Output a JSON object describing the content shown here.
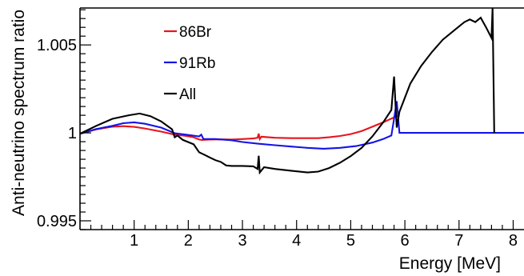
{
  "chart_data": {
    "type": "line",
    "title": "",
    "xlabel": "Energy [MeV]",
    "ylabel": "Anti-neutrino spectrum ratio",
    "xlim": [
      0,
      8.2
    ],
    "ylim": [
      0.9945,
      1.0071
    ],
    "x_ticks": [
      1,
      2,
      3,
      4,
      5,
      6,
      7,
      8
    ],
    "x_tick_labels": [
      "1",
      "2",
      "3",
      "4",
      "5",
      "6",
      "7",
      "8"
    ],
    "y_ticks": [
      0.995,
      1,
      1.005
    ],
    "y_tick_labels": [
      "0.995",
      "1",
      "1.005"
    ],
    "grid": false,
    "legend_position": "top-left",
    "series": [
      {
        "name": "86Br",
        "color": "#e8141c",
        "points": [
          [
            0,
            0.99995
          ],
          [
            0.3,
            1.0002
          ],
          [
            0.6,
            1.00035
          ],
          [
            0.8,
            1.00038
          ],
          [
            1.0,
            1.00034
          ],
          [
            1.2,
            1.00025
          ],
          [
            1.5,
            1.00007
          ],
          [
            1.75,
            0.9999
          ],
          [
            1.9,
            0.99985
          ],
          [
            2.1,
            0.99975
          ],
          [
            2.2,
            0.99962
          ],
          [
            2.25,
            0.9996
          ],
          [
            2.4,
            0.99962
          ],
          [
            2.6,
            0.99963
          ],
          [
            2.8,
            0.99962
          ],
          [
            3.0,
            0.99965
          ],
          [
            3.2,
            0.99968
          ],
          [
            3.28,
            0.99972
          ],
          [
            3.3,
            0.99996
          ],
          [
            3.32,
            0.99965
          ],
          [
            3.35,
            0.99978
          ],
          [
            3.6,
            0.99972
          ],
          [
            3.9,
            0.9997
          ],
          [
            4.2,
            0.9997
          ],
          [
            4.4,
            0.9997
          ],
          [
            4.6,
            0.99975
          ],
          [
            4.8,
            0.99982
          ],
          [
            5.0,
            0.99993
          ],
          [
            5.2,
            1.0001
          ],
          [
            5.4,
            1.00035
          ],
          [
            5.6,
            1.0006
          ],
          [
            5.8,
            1.00088
          ],
          [
            5.9,
            1.00102
          ]
        ]
      },
      {
        "name": "91Rb",
        "color": "#1414e6",
        "points": [
          [
            0,
            0.99995
          ],
          [
            0.3,
            1.00022
          ],
          [
            0.6,
            1.0004
          ],
          [
            0.8,
            1.00055
          ],
          [
            1.0,
            1.0006
          ],
          [
            1.2,
            1.00052
          ],
          [
            1.5,
            1.0003
          ],
          [
            1.75,
            0.99998
          ],
          [
            2.0,
            0.99988
          ],
          [
            2.2,
            0.9998
          ],
          [
            2.24,
            0.9999
          ],
          [
            2.28,
            0.99965
          ],
          [
            2.5,
            0.99965
          ],
          [
            2.8,
            0.99958
          ],
          [
            3.0,
            0.99948
          ],
          [
            3.3,
            0.99938
          ],
          [
            3.6,
            0.9993
          ],
          [
            3.9,
            0.99922
          ],
          [
            4.2,
            0.99915
          ],
          [
            4.5,
            0.9991
          ],
          [
            4.8,
            0.99915
          ],
          [
            5.1,
            0.99925
          ],
          [
            5.4,
            0.99945
          ],
          [
            5.6,
            0.99965
          ],
          [
            5.75,
            0.99985
          ],
          [
            5.8,
            1.0008
          ],
          [
            5.85,
            1.0018
          ],
          [
            5.9,
            1.0
          ],
          [
            6.3,
            1.0
          ],
          [
            7.0,
            1.0
          ],
          [
            7.65,
            1.0
          ],
          [
            8.2,
            1.0
          ]
        ]
      },
      {
        "name": "All",
        "color": "#000000",
        "points": [
          [
            0,
            0.99995
          ],
          [
            0.3,
            1.0004
          ],
          [
            0.6,
            1.0008
          ],
          [
            0.9,
            1.001
          ],
          [
            1.1,
            1.0011
          ],
          [
            1.3,
            1.00095
          ],
          [
            1.5,
            1.00065
          ],
          [
            1.7,
            1.0002
          ],
          [
            1.75,
            0.99975
          ],
          [
            1.8,
            0.99985
          ],
          [
            1.9,
            0.9996
          ],
          [
            2.1,
            0.99935
          ],
          [
            2.2,
            0.9989
          ],
          [
            2.3,
            0.99875
          ],
          [
            2.4,
            0.9986
          ],
          [
            2.5,
            0.99845
          ],
          [
            2.6,
            0.99835
          ],
          [
            2.7,
            0.99815
          ],
          [
            2.8,
            0.99812
          ],
          [
            3.0,
            0.99812
          ],
          [
            3.2,
            0.9981
          ],
          [
            3.28,
            0.99795
          ],
          [
            3.3,
            0.9987
          ],
          [
            3.32,
            0.99775
          ],
          [
            3.4,
            0.99805
          ],
          [
            3.6,
            0.99795
          ],
          [
            3.9,
            0.99785
          ],
          [
            4.2,
            0.99775
          ],
          [
            4.4,
            0.9978
          ],
          [
            4.6,
            0.998
          ],
          [
            4.8,
            0.9983
          ],
          [
            5.0,
            0.99868
          ],
          [
            5.2,
            0.99915
          ],
          [
            5.4,
            0.9998
          ],
          [
            5.6,
            1.0006
          ],
          [
            5.75,
            1.0013
          ],
          [
            5.8,
            1.0032
          ],
          [
            5.85,
            1.0003
          ],
          [
            5.9,
            1.0012
          ],
          [
            6.1,
            1.0028
          ],
          [
            6.3,
            1.0038
          ],
          [
            6.5,
            1.0046
          ],
          [
            6.7,
            1.0053
          ],
          [
            6.9,
            1.0058
          ],
          [
            7.1,
            1.0063
          ],
          [
            7.2,
            1.00645
          ],
          [
            7.3,
            1.0063
          ],
          [
            7.4,
            1.00655
          ],
          [
            7.5,
            1.006
          ],
          [
            7.6,
            1.0054
          ],
          [
            7.62,
            1.0071
          ],
          [
            7.65,
            1.0
          ]
        ]
      }
    ]
  }
}
